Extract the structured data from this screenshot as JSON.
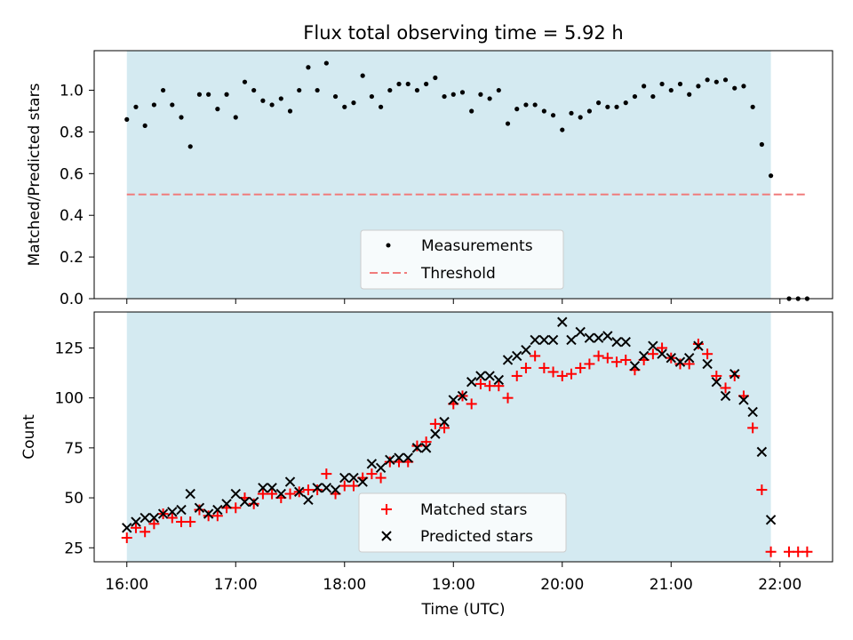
{
  "chart_data": [
    {
      "type": "scatter",
      "title": "Flux total observing time = 5.92 h",
      "xlabel": "",
      "ylabel": "Matched/Predicted stars",
      "xlim": [
        "15:42",
        "22:29"
      ],
      "ylim": [
        0,
        1.19
      ],
      "yticks": [
        0.0,
        0.2,
        0.4,
        0.6,
        0.8,
        1.0
      ],
      "ytick_labels": [
        "0.0",
        "0.2",
        "0.4",
        "0.6",
        "0.8",
        "1.0"
      ],
      "shaded_interval": [
        "16:00",
        "21:55"
      ],
      "shade_color": "#d4eaf1",
      "threshold": 0.5,
      "legend_position": "lower center",
      "legend": [
        "Measurements",
        "Threshold"
      ],
      "series": [
        {
          "name": "Measurements",
          "marker": "dot",
          "color": "#000000",
          "x": [
            "16:00",
            "16:05",
            "16:10",
            "16:15",
            "16:20",
            "16:25",
            "16:30",
            "16:35",
            "16:40",
            "16:45",
            "16:50",
            "16:55",
            "17:00",
            "17:05",
            "17:10",
            "17:15",
            "17:20",
            "17:25",
            "17:30",
            "17:35",
            "17:40",
            "17:45",
            "17:50",
            "17:55",
            "18:00",
            "18:05",
            "18:10",
            "18:15",
            "18:20",
            "18:25",
            "18:30",
            "18:35",
            "18:40",
            "18:45",
            "18:50",
            "18:55",
            "19:00",
            "19:05",
            "19:10",
            "19:15",
            "19:20",
            "19:25",
            "19:30",
            "19:35",
            "19:40",
            "19:45",
            "19:50",
            "19:55",
            "20:00",
            "20:05",
            "20:10",
            "20:15",
            "20:20",
            "20:25",
            "20:30",
            "20:35",
            "20:40",
            "20:45",
            "20:50",
            "20:55",
            "21:00",
            "21:05",
            "21:10",
            "21:15",
            "21:20",
            "21:25",
            "21:30",
            "21:35",
            "21:40",
            "21:45",
            "21:50",
            "21:55",
            "22:05",
            "22:10",
            "22:15"
          ],
          "y": [
            0.86,
            0.92,
            0.83,
            0.93,
            1.0,
            0.93,
            0.87,
            0.73,
            0.98,
            0.98,
            0.91,
            0.98,
            0.87,
            1.04,
            1.0,
            0.95,
            0.93,
            0.96,
            0.9,
            1.0,
            1.11,
            1.0,
            1.13,
            0.97,
            0.92,
            0.94,
            1.07,
            0.97,
            0.92,
            1.0,
            1.03,
            1.03,
            1.0,
            1.03,
            1.06,
            0.97,
            0.98,
            0.99,
            0.9,
            0.98,
            0.96,
            1.0,
            0.84,
            0.91,
            0.93,
            0.93,
            0.9,
            0.88,
            0.81,
            0.89,
            0.87,
            0.9,
            0.94,
            0.92,
            0.92,
            0.94,
            0.97,
            1.02,
            0.97,
            1.03,
            1.0,
            1.03,
            0.98,
            1.02,
            1.05,
            1.04,
            1.05,
            1.01,
            1.02,
            0.92,
            0.74,
            0.59,
            0.0,
            0.0,
            0.0
          ]
        },
        {
          "name": "Threshold",
          "style": "dashed",
          "color": "#f07c7c",
          "x": [
            "16:00",
            "22:15"
          ],
          "y": [
            0.5,
            0.5
          ]
        }
      ]
    },
    {
      "type": "scatter",
      "title": "",
      "xlabel": "Time (UTC)",
      "ylabel": "Count",
      "xlim": [
        "15:42",
        "22:29"
      ],
      "ylim": [
        18,
        143
      ],
      "yticks": [
        25,
        50,
        75,
        100,
        125
      ],
      "ytick_labels": [
        "25",
        "50",
        "75",
        "100",
        "125"
      ],
      "xticks": [
        "16:00",
        "17:00",
        "18:00",
        "19:00",
        "20:00",
        "21:00",
        "22:00"
      ],
      "shaded_interval": [
        "16:00",
        "21:55"
      ],
      "shade_color": "#d4eaf1",
      "legend_position": "lower center",
      "legend": [
        "Matched stars",
        "Predicted stars"
      ],
      "series": [
        {
          "name": "Matched stars",
          "marker": "plus",
          "color": "#ff0000",
          "x": [
            "16:00",
            "16:05",
            "16:10",
            "16:15",
            "16:20",
            "16:25",
            "16:30",
            "16:35",
            "16:40",
            "16:45",
            "16:50",
            "16:55",
            "17:00",
            "17:05",
            "17:10",
            "17:15",
            "17:20",
            "17:25",
            "17:30",
            "17:35",
            "17:40",
            "17:45",
            "17:50",
            "17:55",
            "18:00",
            "18:05",
            "18:10",
            "18:15",
            "18:20",
            "18:25",
            "18:30",
            "18:35",
            "18:40",
            "18:45",
            "18:50",
            "18:55",
            "19:00",
            "19:05",
            "19:10",
            "19:15",
            "19:20",
            "19:25",
            "19:30",
            "19:35",
            "19:40",
            "19:45",
            "19:50",
            "19:55",
            "20:00",
            "20:05",
            "20:10",
            "20:15",
            "20:20",
            "20:25",
            "20:30",
            "20:35",
            "20:40",
            "20:45",
            "20:50",
            "20:55",
            "21:00",
            "21:05",
            "21:10",
            "21:15",
            "21:20",
            "21:25",
            "21:30",
            "21:35",
            "21:40",
            "21:45",
            "21:50",
            "21:55",
            "22:05",
            "22:10",
            "22:15"
          ],
          "y": [
            30,
            35,
            33,
            37,
            42,
            40,
            38,
            38,
            44,
            41,
            41,
            45,
            45,
            50,
            47,
            52,
            52,
            50,
            52,
            53,
            54,
            54,
            62,
            52,
            56,
            56,
            60,
            62,
            60,
            68,
            68,
            68,
            76,
            78,
            87,
            85,
            97,
            101,
            97,
            107,
            106,
            106,
            100,
            111,
            115,
            121,
            115,
            113,
            111,
            112,
            115,
            117,
            121,
            120,
            118,
            119,
            114,
            119,
            122,
            125,
            120,
            117,
            117,
            127,
            122,
            111,
            105,
            111,
            101,
            85,
            54,
            23,
            23,
            23,
            23
          ]
        },
        {
          "name": "Predicted stars",
          "marker": "x",
          "color": "#000000",
          "x": [
            "16:00",
            "16:05",
            "16:10",
            "16:15",
            "16:20",
            "16:25",
            "16:30",
            "16:35",
            "16:40",
            "16:45",
            "16:50",
            "16:55",
            "17:00",
            "17:05",
            "17:10",
            "17:15",
            "17:20",
            "17:25",
            "17:30",
            "17:35",
            "17:40",
            "17:45",
            "17:50",
            "17:55",
            "18:00",
            "18:05",
            "18:10",
            "18:15",
            "18:20",
            "18:25",
            "18:30",
            "18:35",
            "18:40",
            "18:45",
            "18:50",
            "18:55",
            "19:00",
            "19:05",
            "19:10",
            "19:15",
            "19:20",
            "19:25",
            "19:30",
            "19:35",
            "19:40",
            "19:45",
            "19:50",
            "19:55",
            "20:00",
            "20:05",
            "20:10",
            "20:15",
            "20:20",
            "20:25",
            "20:30",
            "20:35",
            "20:40",
            "20:45",
            "20:50",
            "20:55",
            "21:00",
            "21:05",
            "21:10",
            "21:15",
            "21:20",
            "21:25",
            "21:30",
            "21:35",
            "21:40",
            "21:45",
            "21:50",
            "21:55"
          ],
          "y": [
            35,
            38,
            40,
            40,
            42,
            43,
            44,
            52,
            45,
            42,
            44,
            47,
            52,
            48,
            48,
            55,
            55,
            52,
            58,
            53,
            49,
            55,
            55,
            54,
            60,
            60,
            58,
            67,
            65,
            69,
            70,
            70,
            75,
            75,
            82,
            88,
            99,
            101,
            108,
            111,
            111,
            109,
            119,
            121,
            124,
            129,
            129,
            129,
            138,
            129,
            133,
            130,
            130,
            131,
            128,
            128,
            116,
            121,
            126,
            122,
            120,
            118,
            120,
            126,
            117,
            108,
            101,
            112,
            99,
            93,
            73,
            39
          ]
        }
      ]
    }
  ]
}
